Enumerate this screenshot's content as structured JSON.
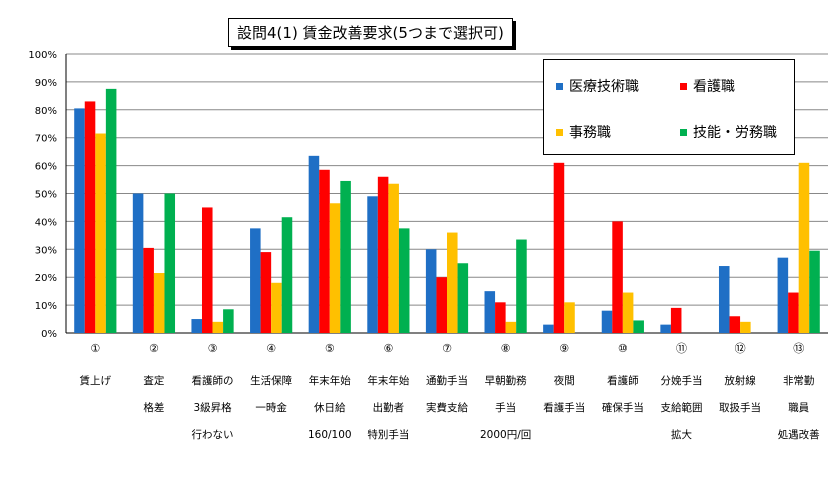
{
  "chart_data": {
    "type": "bar",
    "title": "設問4(1) 賃金改善要求(5つまで選択可)",
    "ylim": [
      0,
      100
    ],
    "yticks": [
      "0%",
      "10%",
      "20%",
      "30%",
      "40%",
      "50%",
      "60%",
      "70%",
      "80%",
      "90%",
      "100%"
    ],
    "legend_position": "top-right",
    "categories": [
      {
        "num": "①",
        "label": [
          "賃上げ"
        ]
      },
      {
        "num": "②",
        "label": [
          "査定",
          "格差"
        ]
      },
      {
        "num": "③",
        "label": [
          "看護師の",
          "3級昇格",
          "行わない"
        ]
      },
      {
        "num": "④",
        "label": [
          "生活保障",
          "一時金"
        ]
      },
      {
        "num": "⑤",
        "label": [
          "年末年始",
          "休日給",
          "160/100"
        ]
      },
      {
        "num": "⑥",
        "label": [
          "年末年始",
          "出勤者",
          "特別手当"
        ]
      },
      {
        "num": "⑦",
        "label": [
          "通勤手当",
          "実費支給"
        ]
      },
      {
        "num": "⑧",
        "label": [
          "早朝勤務",
          "手当",
          "2000円/回"
        ]
      },
      {
        "num": "⑨",
        "label": [
          "夜間",
          "看護手当"
        ]
      },
      {
        "num": "⑩",
        "label": [
          "看護師",
          "確保手当"
        ]
      },
      {
        "num": "⑪",
        "label": [
          "分娩手当",
          "支給範囲",
          "拡大"
        ]
      },
      {
        "num": "⑫",
        "label": [
          "放射線",
          "取扱手当"
        ]
      },
      {
        "num": "⑬",
        "label": [
          "非常勤",
          "職員",
          "処遇改善"
        ]
      }
    ],
    "series": [
      {
        "name": "医療技術職",
        "color": "#1f6fc5",
        "values": [
          80.5,
          50,
          5,
          37.5,
          63.5,
          49,
          30,
          15,
          3,
          8,
          3,
          24,
          27
        ]
      },
      {
        "name": "看護職",
        "color": "#ff0000",
        "values": [
          83,
          30.5,
          45,
          29,
          58.5,
          56,
          20,
          11,
          61,
          40,
          9,
          6,
          14.5
        ]
      },
      {
        "name": "事務職",
        "color": "#ffc000",
        "values": [
          71.5,
          21.5,
          4,
          18,
          46.5,
          53.5,
          36,
          4,
          11,
          14.5,
          0,
          4,
          61
        ]
      },
      {
        "name": "技能・労務職",
        "color": "#00b050",
        "values": [
          87.5,
          50,
          8.5,
          41.5,
          54.5,
          37.5,
          25,
          33.5,
          0,
          4.5,
          0,
          0,
          29.5
        ]
      }
    ]
  }
}
